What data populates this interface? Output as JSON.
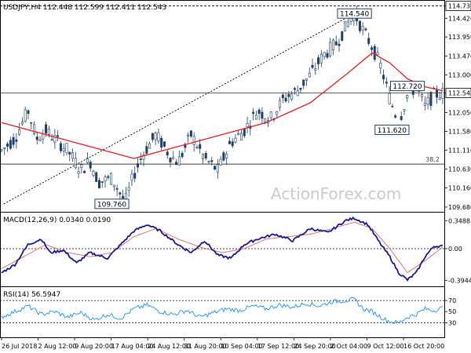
{
  "chart_data": [
    {
      "type": "candlestick",
      "title": "USDJPY,H4  112.448 112.599 112.411 112.543",
      "y_ticks": [
        "114.730",
        "114.420",
        "113.950",
        "113.470",
        "113.000",
        "112.543",
        "112.050",
        "111.580",
        "111.110",
        "110.630",
        "110.160",
        "109.680"
      ],
      "y_range": [
        109.6,
        114.8
      ],
      "close_price": 112.543,
      "annotations": [
        {
          "text": "114.540",
          "price": 114.54,
          "t": 0.8
        },
        {
          "text": "112.720",
          "price": 112.72,
          "t": 0.92
        },
        {
          "text": "111.620",
          "price": 111.62,
          "t": 0.885
        },
        {
          "text": "109.760",
          "price": 109.76,
          "t": 0.25
        },
        {
          "text": "38.2",
          "price": 110.76,
          "t": 0.97
        }
      ],
      "levels": {
        "top_dashed": 114.73,
        "fib_38_2": 110.76,
        "last_close": 112.543
      },
      "trendline": {
        "from": {
          "price": 109.76,
          "t": 0.005
        },
        "to": {
          "price": 114.54,
          "t": 0.8
        }
      },
      "price_path": [
        [
          0.0,
          111.1
        ],
        [
          0.03,
          111.4
        ],
        [
          0.06,
          112.1
        ],
        [
          0.08,
          111.4
        ],
        [
          0.1,
          111.6
        ],
        [
          0.12,
          111.4
        ],
        [
          0.15,
          111.1
        ],
        [
          0.18,
          110.6
        ],
        [
          0.2,
          110.85
        ],
        [
          0.22,
          110.3
        ],
        [
          0.25,
          110.4
        ],
        [
          0.28,
          109.8
        ],
        [
          0.3,
          110.5
        ],
        [
          0.32,
          111.0
        ],
        [
          0.35,
          111.5
        ],
        [
          0.38,
          111.0
        ],
        [
          0.4,
          110.8
        ],
        [
          0.43,
          111.5
        ],
        [
          0.46,
          110.9
        ],
        [
          0.49,
          110.6
        ],
        [
          0.52,
          111.3
        ],
        [
          0.55,
          111.6
        ],
        [
          0.58,
          112.1
        ],
        [
          0.61,
          111.9
        ],
        [
          0.64,
          112.4
        ],
        [
          0.67,
          112.6
        ],
        [
          0.7,
          113.0
        ],
        [
          0.73,
          113.5
        ],
        [
          0.76,
          113.8
        ],
        [
          0.79,
          114.4
        ],
        [
          0.8,
          114.54
        ],
        [
          0.82,
          114.1
        ],
        [
          0.84,
          113.7
        ],
        [
          0.86,
          113.2
        ],
        [
          0.88,
          112.4
        ],
        [
          0.9,
          111.8
        ],
        [
          0.92,
          112.5
        ],
        [
          0.94,
          112.7
        ],
        [
          0.96,
          112.2
        ],
        [
          0.98,
          112.5
        ],
        [
          1.0,
          112.54
        ]
      ],
      "ma_path": [
        [
          0.0,
          111.8
        ],
        [
          0.1,
          111.5
        ],
        [
          0.2,
          111.2
        ],
        [
          0.3,
          110.9
        ],
        [
          0.4,
          111.2
        ],
        [
          0.5,
          111.5
        ],
        [
          0.6,
          111.8
        ],
        [
          0.7,
          112.3
        ],
        [
          0.78,
          113.0
        ],
        [
          0.84,
          113.55
        ],
        [
          0.88,
          113.3
        ],
        [
          0.92,
          112.9
        ],
        [
          0.96,
          112.7
        ],
        [
          1.0,
          112.6
        ]
      ]
    },
    {
      "type": "line",
      "title": "MACD(12,26,9) 0.0340 0.0190",
      "y_ticks": [
        "0.3488",
        "0.00",
        "-0.3944"
      ],
      "y_range": [
        -0.45,
        0.42
      ],
      "macd_path": [
        [
          0.0,
          -0.3
        ],
        [
          0.03,
          -0.2
        ],
        [
          0.06,
          0.05
        ],
        [
          0.09,
          0.12
        ],
        [
          0.11,
          -0.05
        ],
        [
          0.14,
          -0.02
        ],
        [
          0.17,
          -0.18
        ],
        [
          0.2,
          -0.05
        ],
        [
          0.24,
          -0.12
        ],
        [
          0.27,
          0.05
        ],
        [
          0.3,
          0.22
        ],
        [
          0.33,
          0.3
        ],
        [
          0.36,
          0.22
        ],
        [
          0.4,
          0.05
        ],
        [
          0.43,
          -0.05
        ],
        [
          0.46,
          0.1
        ],
        [
          0.49,
          -0.08
        ],
        [
          0.52,
          -0.12
        ],
        [
          0.55,
          0.05
        ],
        [
          0.58,
          0.12
        ],
        [
          0.62,
          0.18
        ],
        [
          0.66,
          0.1
        ],
        [
          0.7,
          0.25
        ],
        [
          0.74,
          0.2
        ],
        [
          0.78,
          0.35
        ],
        [
          0.8,
          0.38
        ],
        [
          0.83,
          0.3
        ],
        [
          0.86,
          0.05
        ],
        [
          0.88,
          -0.1
        ],
        [
          0.9,
          -0.3
        ],
        [
          0.92,
          -0.39
        ],
        [
          0.94,
          -0.3
        ],
        [
          0.96,
          -0.1
        ],
        [
          0.98,
          0.03
        ],
        [
          1.0,
          0.03
        ]
      ],
      "signal_path": [
        [
          0.0,
          -0.25
        ],
        [
          0.05,
          -0.1
        ],
        [
          0.1,
          0.05
        ],
        [
          0.15,
          -0.05
        ],
        [
          0.2,
          -0.1
        ],
        [
          0.25,
          -0.05
        ],
        [
          0.3,
          0.15
        ],
        [
          0.35,
          0.25
        ],
        [
          0.4,
          0.12
        ],
        [
          0.45,
          0.02
        ],
        [
          0.5,
          -0.05
        ],
        [
          0.55,
          0.0
        ],
        [
          0.6,
          0.12
        ],
        [
          0.65,
          0.15
        ],
        [
          0.7,
          0.18
        ],
        [
          0.75,
          0.25
        ],
        [
          0.8,
          0.33
        ],
        [
          0.84,
          0.25
        ],
        [
          0.88,
          0.0
        ],
        [
          0.92,
          -0.3
        ],
        [
          0.96,
          -0.15
        ],
        [
          1.0,
          0.02
        ]
      ]
    },
    {
      "type": "line",
      "title": "RSI(14) 56.5947",
      "y_ticks": [
        "70",
        "50",
        "30"
      ],
      "y_range": [
        5,
        90
      ],
      "levels": [
        70,
        30
      ],
      "rsi_path": [
        [
          0.0,
          40
        ],
        [
          0.03,
          50
        ],
        [
          0.06,
          60
        ],
        [
          0.09,
          45
        ],
        [
          0.12,
          50
        ],
        [
          0.15,
          40
        ],
        [
          0.18,
          48
        ],
        [
          0.21,
          35
        ],
        [
          0.24,
          45
        ],
        [
          0.27,
          38
        ],
        [
          0.3,
          55
        ],
        [
          0.33,
          62
        ],
        [
          0.36,
          50
        ],
        [
          0.39,
          45
        ],
        [
          0.42,
          52
        ],
        [
          0.45,
          40
        ],
        [
          0.48,
          48
        ],
        [
          0.51,
          55
        ],
        [
          0.54,
          52
        ],
        [
          0.57,
          60
        ],
        [
          0.6,
          55
        ],
        [
          0.63,
          62
        ],
        [
          0.66,
          58
        ],
        [
          0.69,
          65
        ],
        [
          0.72,
          60
        ],
        [
          0.75,
          68
        ],
        [
          0.78,
          70
        ],
        [
          0.8,
          72
        ],
        [
          0.82,
          55
        ],
        [
          0.84,
          50
        ],
        [
          0.86,
          40
        ],
        [
          0.88,
          32
        ],
        [
          0.9,
          30
        ],
        [
          0.92,
          40
        ],
        [
          0.94,
          45
        ],
        [
          0.96,
          55
        ],
        [
          0.98,
          52
        ],
        [
          1.0,
          56.6
        ]
      ]
    }
  ],
  "x_axis": {
    "labels": [
      "26 Jul 2018",
      "2 Aug 12:00",
      "9 Aug 20:00",
      "17 Aug 04:00",
      "24 Aug 12:00",
      "31 Aug 20:00",
      "10 Sep 04:00",
      "17 Sep 12:00",
      "24 Sep 20:00",
      "2 Oct 04:00",
      "9 Oct 12:00",
      "16 Oct 20:00"
    ]
  },
  "watermark": "ActionForex.com",
  "colors": {
    "price": "#1f3f66",
    "ma": "#e21e1e",
    "macd": "#1a1a8c",
    "signal": "#d96a6a",
    "rsi": "#1e90ff",
    "grid": "#000000",
    "label_box": "#1f3f66"
  }
}
